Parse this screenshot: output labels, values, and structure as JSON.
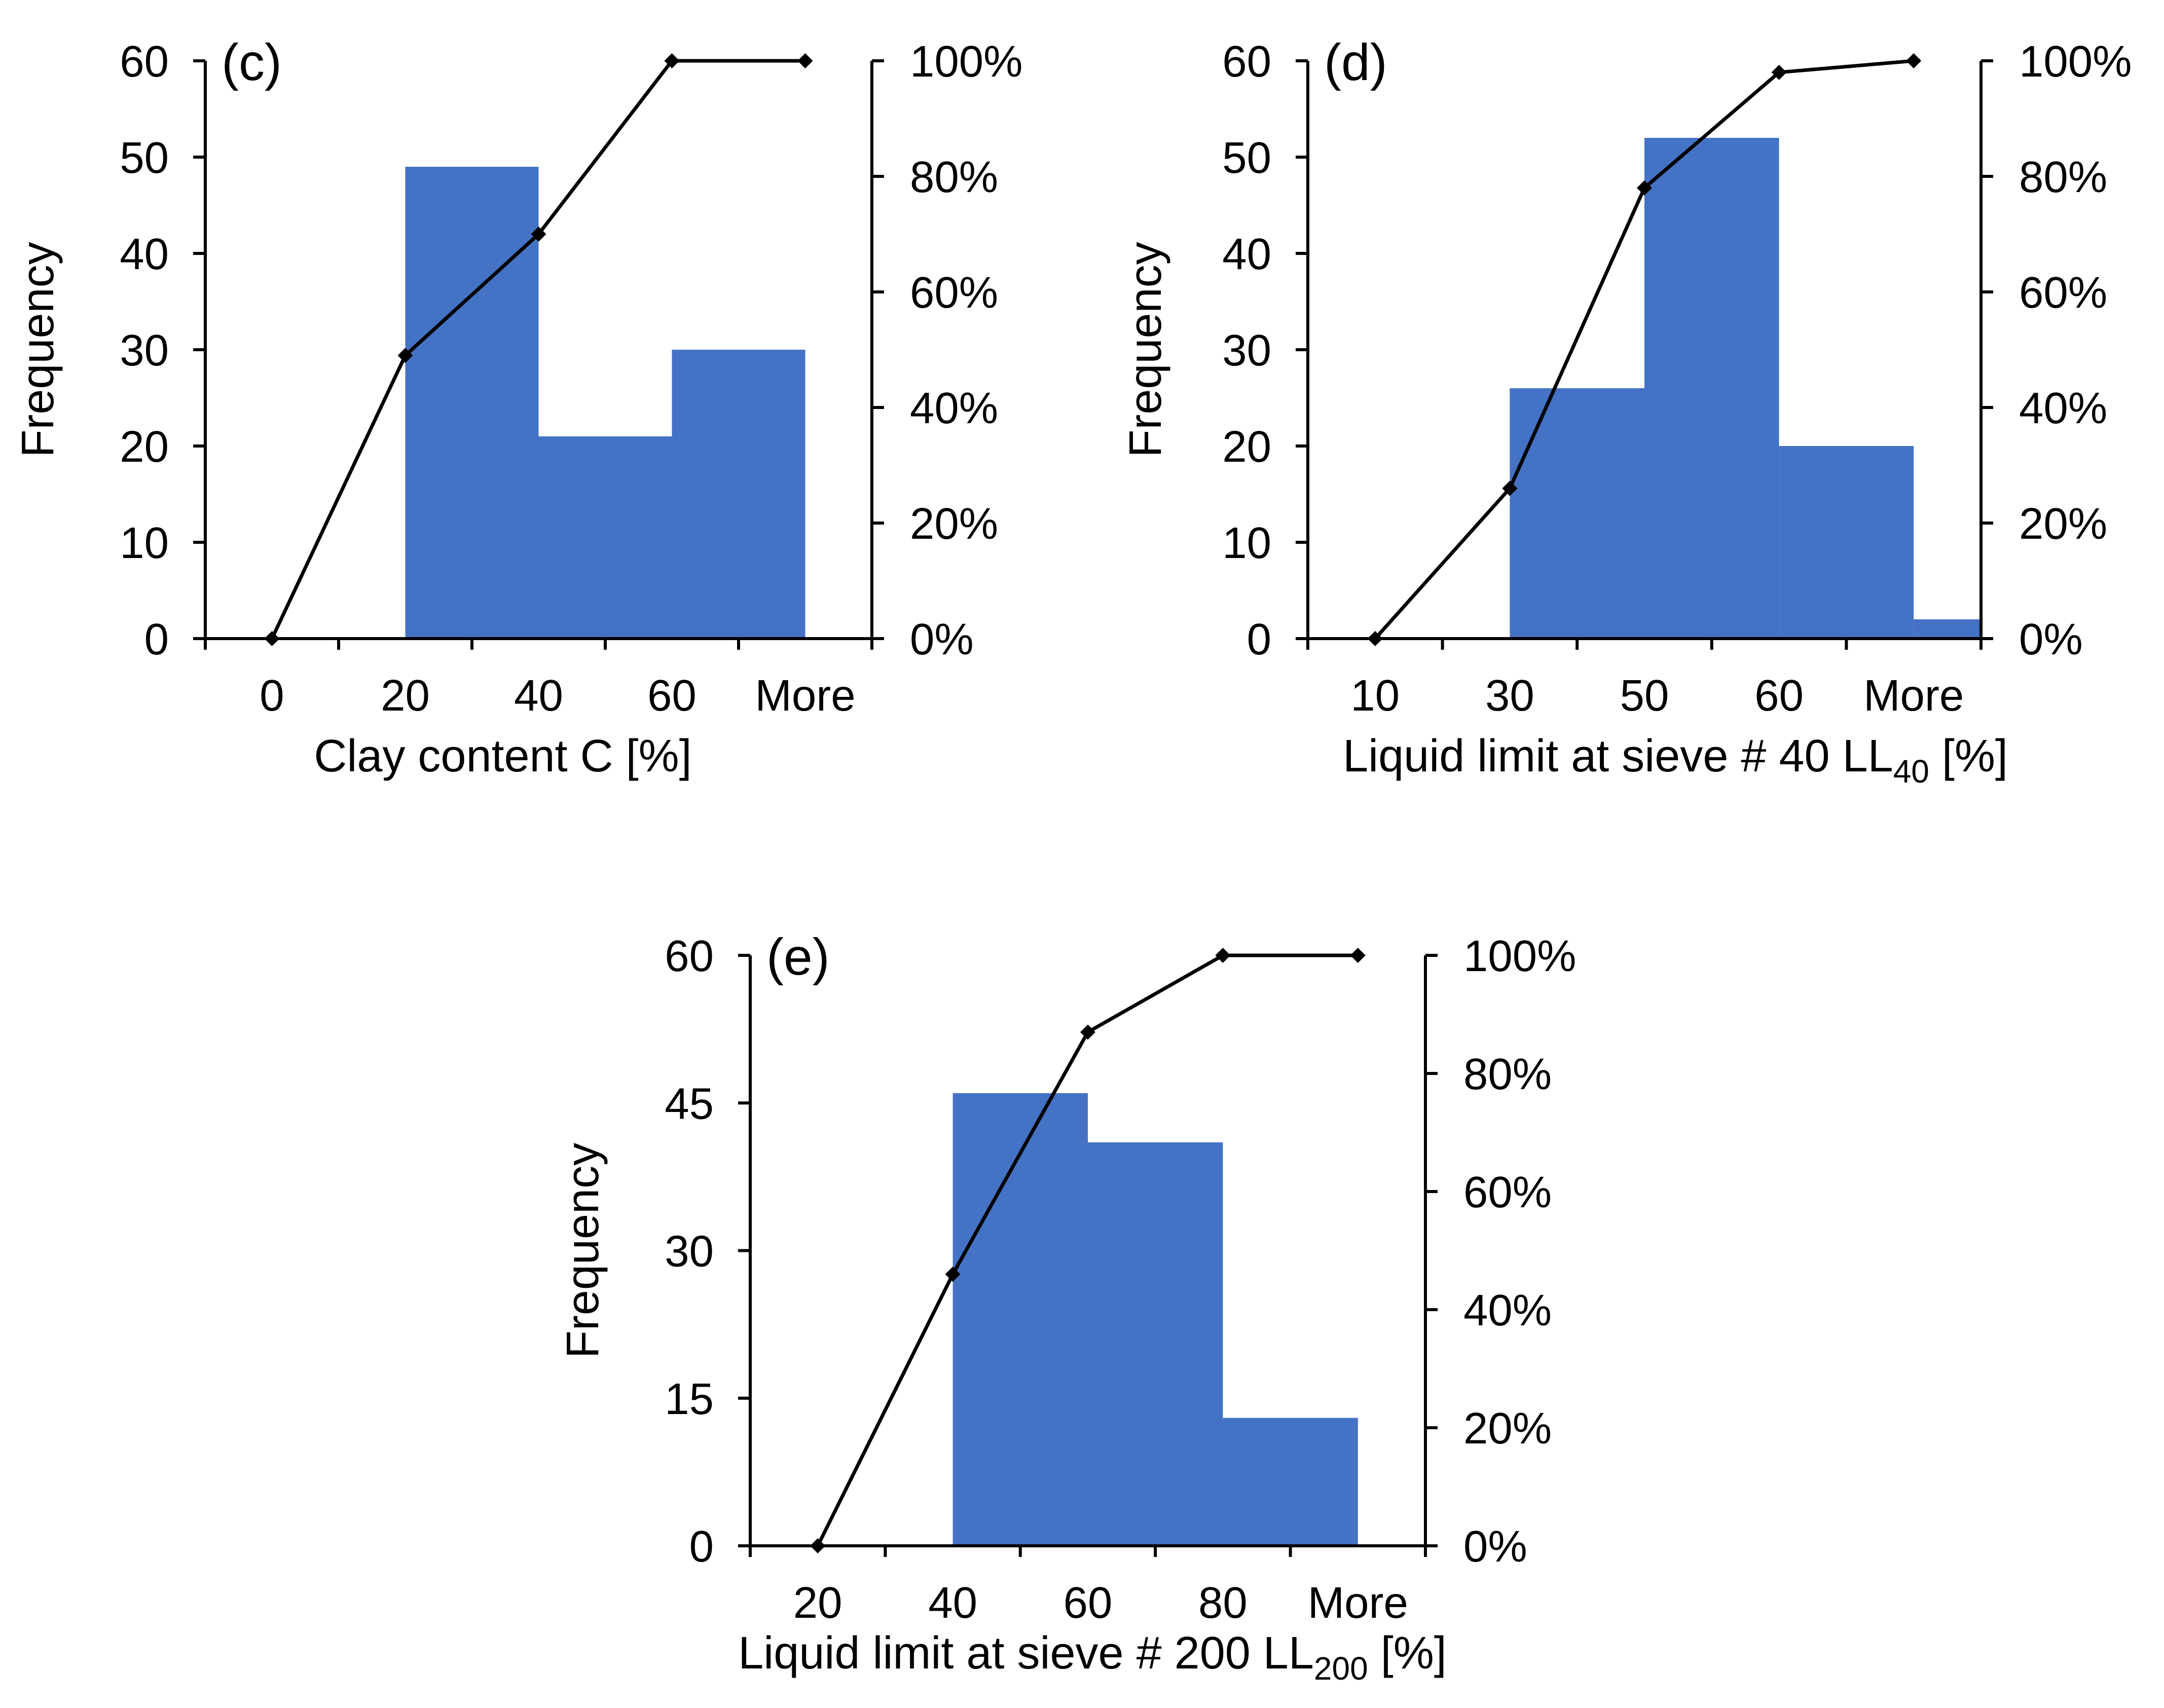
{
  "colors": {
    "bar": "#4472C4",
    "line": "#000000",
    "marker": "#000000"
  },
  "chart_data": [
    {
      "id": "c",
      "type": "bar",
      "panel_label": "(c)",
      "categories": [
        "0",
        "20",
        "40",
        "60",
        "More"
      ],
      "values": [
        0,
        49,
        21,
        30,
        0
      ],
      "cumulative_percent": [
        0,
        49,
        70,
        100,
        100
      ],
      "xlabel": "Clay content C [%]",
      "xlabel_main": "Clay content C [%]",
      "xlabel_sub": "",
      "xlabel_tail": "",
      "ylabel": "Frequency",
      "ylim": [
        0,
        60
      ],
      "yticks": [
        "0",
        "10",
        "20",
        "30",
        "40",
        "50",
        "60"
      ],
      "y2lim": [
        0,
        100
      ],
      "y2ticks": [
        "0%",
        "20%",
        "40%",
        "60%",
        "80%",
        "100%"
      ]
    },
    {
      "id": "d",
      "type": "bar",
      "panel_label": "(d)",
      "categories": [
        "10",
        "30",
        "50",
        "60",
        "More"
      ],
      "values": [
        0,
        26,
        52,
        20,
        2
      ],
      "cumulative_percent": [
        0,
        26,
        78,
        98,
        100
      ],
      "xlabel": "Liquid limit at sieve # 40 LL40 [%]",
      "xlabel_main": "Liquid limit at sieve # 40 LL",
      "xlabel_sub": "40",
      "xlabel_tail": " [%]",
      "ylabel": "Frequency",
      "ylim": [
        0,
        60
      ],
      "yticks": [
        "0",
        "10",
        "20",
        "30",
        "40",
        "50",
        "60"
      ],
      "y2lim": [
        0,
        100
      ],
      "y2ticks": [
        "0%",
        "20%",
        "40%",
        "60%",
        "80%",
        "100%"
      ]
    },
    {
      "id": "e",
      "type": "bar",
      "panel_label": "(e)",
      "categories": [
        "20",
        "40",
        "60",
        "80",
        "More"
      ],
      "values": [
        0,
        46,
        41,
        13,
        0
      ],
      "cumulative_percent": [
        0,
        46,
        87,
        100,
        100
      ],
      "xlabel": "Liquid limit at sieve # 200 LL200 [%]",
      "xlabel_main": "Liquid limit at sieve # 200 LL",
      "xlabel_sub": "200",
      "xlabel_tail": " [%]",
      "ylabel": "Frequency",
      "ylim": [
        0,
        60
      ],
      "yticks": [
        "0",
        "15",
        "30",
        "45",
        "60"
      ],
      "y2lim": [
        0,
        100
      ],
      "y2ticks": [
        "0%",
        "20%",
        "40%",
        "60%",
        "80%",
        "100%"
      ]
    }
  ]
}
